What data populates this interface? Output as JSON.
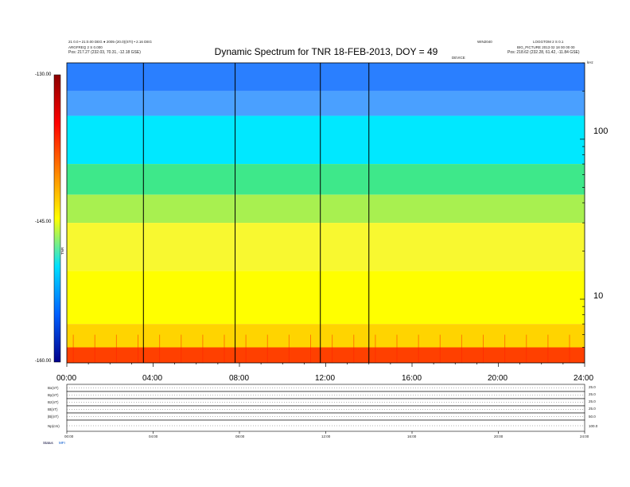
{
  "header": {
    "title": "Dynamic Spectrum for TNR 18-FEB-2013, DOY = 49",
    "left_line1": "21 0.0 • 21:0.00 DEG ● 2005·(20.0)(STI) • 2.16 DEG",
    "left_line2": "ARGFREQ 2 S 0.000",
    "left_line3": "Pos:   217.27 (232.03, 70.31, -12.18 GSE)",
    "right_line1": "LOGGTOM 2 S 0.1",
    "right_line2": "BIG_PICTURE 2013 02 18 00 00 00",
    "right_line3": "Pos:   218.62 (232.28, 61.42, -11.84 GSE)",
    "mid_right_tag": "WIN2040",
    "center_small": "DEVICE",
    "corner_unit": "kHz"
  },
  "chart_data": {
    "type": "heatmap",
    "title": "Dynamic Spectrum for TNR 18-FEB-2013, DOY = 49",
    "x_ticks": [
      "00:00",
      "04:00",
      "08:00",
      "12:00",
      "16:00",
      "20:00",
      "24:00"
    ],
    "x_range_hours": [
      0,
      24
    ],
    "y_scale": "log",
    "y_ticks": [
      "100",
      "10"
    ],
    "y_tick_values": [
      100,
      10
    ],
    "y_range": [
      4,
      300
    ],
    "colorbar": {
      "ticks": [
        "-130.00",
        "-145.00",
        "-160.00"
      ],
      "tick_values": [
        -130,
        -145,
        -160
      ],
      "range": [
        -160,
        -130
      ],
      "label": "TNR",
      "colors": [
        "#8b0000",
        "#ff0000",
        "#ff8000",
        "#ffff00",
        "#00e0ff",
        "#0060ff",
        "#00008b"
      ]
    },
    "vertical_lines_hours": [
      3.55,
      7.8,
      11.75,
      14.0
    ],
    "bands": [
      {
        "y_top": 300,
        "y_bottom": 200,
        "color": "#2a7fff"
      },
      {
        "y_top": 200,
        "y_bottom": 140,
        "color": "#4aa0ff"
      },
      {
        "y_top": 140,
        "y_bottom": 70,
        "color": "#00e8ff"
      },
      {
        "y_top": 70,
        "y_bottom": 45,
        "color": "#3ee88a"
      },
      {
        "y_top": 45,
        "y_bottom": 30,
        "color": "#a8f050"
      },
      {
        "y_top": 30,
        "y_bottom": 15,
        "color": "#f8f830"
      },
      {
        "y_top": 15,
        "y_bottom": 7,
        "color": "#ffff00"
      },
      {
        "y_top": 7,
        "y_bottom": 5,
        "color": "#ffd400"
      },
      {
        "y_top": 5,
        "y_bottom": 4,
        "color": "#ff4000"
      }
    ]
  },
  "subpanels": {
    "labels": [
      "Bx(nT)",
      "By(nT)",
      "Bz(nT)",
      "Bt(nT)",
      "|B|(nT)",
      "Np(cm)"
    ],
    "right_ticks": [
      "25.0",
      "25.0",
      "25.0",
      "25.0",
      "50.0",
      "100.0"
    ],
    "x_ticks": [
      "00:00",
      "04:00",
      "08:00",
      "12:00",
      "16:00",
      "20:00",
      "24:00"
    ],
    "status_label": "Status",
    "status_code": "MFI"
  }
}
